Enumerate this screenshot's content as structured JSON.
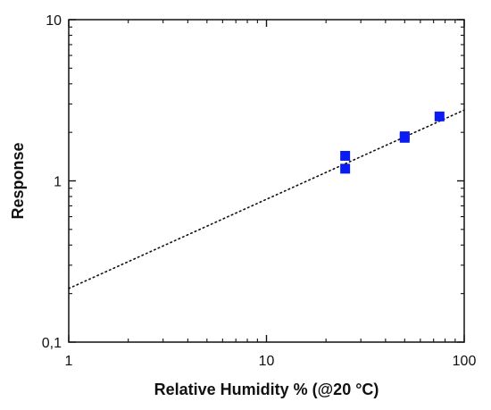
{
  "chart_data": {
    "type": "scatter",
    "title": "",
    "xlabel": "Relative Humidity % (@20 °C)",
    "ylabel": "Response",
    "x_scale": "log",
    "y_scale": "log",
    "xlim": [
      1,
      100
    ],
    "ylim": [
      0.1,
      10
    ],
    "x_ticks": [
      1,
      10,
      100
    ],
    "x_tick_labels": [
      "1",
      "10",
      "100"
    ],
    "y_ticks": [
      0.1,
      1,
      10
    ],
    "y_tick_labels": [
      "0,1",
      "1",
      "10"
    ],
    "grid": false,
    "legend": "none",
    "series": [
      {
        "marker": "square",
        "color": "#0a1cf2",
        "points": [
          {
            "x": 25,
            "y": 1.43
          },
          {
            "x": 25,
            "y": 1.19
          },
          {
            "x": 50,
            "y": 1.89
          },
          {
            "x": 50,
            "y": 1.85
          },
          {
            "x": 75,
            "y": 2.51
          }
        ]
      }
    ],
    "fit_line": {
      "style": "dotted",
      "color": "#111111",
      "points": [
        {
          "x": 1,
          "y": 0.215
        },
        {
          "x": 100,
          "y": 2.75
        }
      ]
    }
  }
}
